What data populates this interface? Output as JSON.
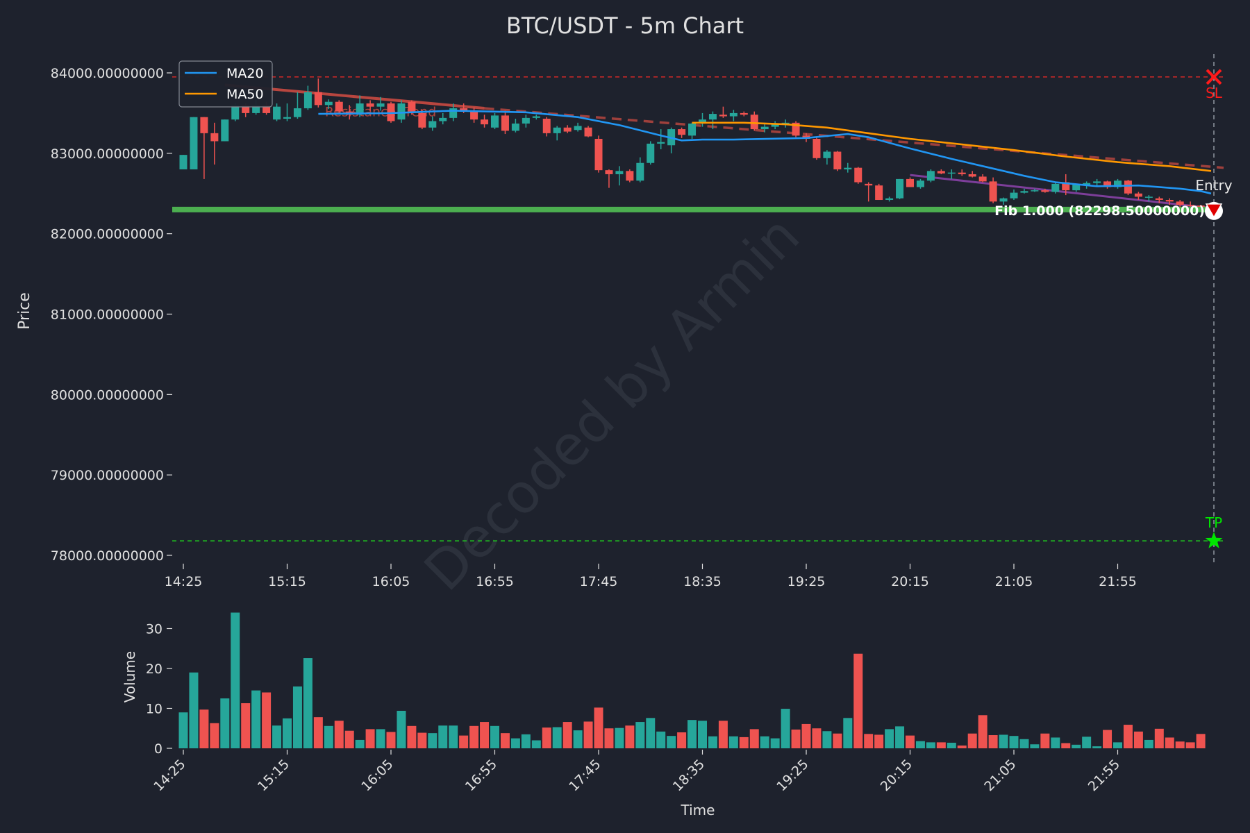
{
  "chart_data": [
    {
      "type": "candlestick",
      "title": "BTC/USDT - 5m Chart",
      "ylabel": "Price",
      "ylim": [
        77800,
        84300
      ],
      "yticks": [
        78000,
        79000,
        80000,
        81000,
        82000,
        83000,
        84000
      ],
      "ytick_labels": [
        "78000.00000000",
        "79000.00000000",
        "80000.00000000",
        "81000.00000000",
        "82000.00000000",
        "83000.00000000",
        "84000.00000000"
      ],
      "xticks": [
        "14:25",
        "15:15",
        "16:05",
        "16:55",
        "17:45",
        "18:35",
        "19:25",
        "20:15",
        "21:05",
        "21:55"
      ],
      "ohlc": [
        [
          82800,
          82980,
          82800,
          82980
        ],
        [
          82800,
          83450,
          82800,
          83450
        ],
        [
          83450,
          83450,
          82680,
          83250
        ],
        [
          83250,
          83380,
          82860,
          83150
        ],
        [
          83150,
          83420,
          83150,
          83420
        ],
        [
          83420,
          83630,
          83400,
          83600
        ],
        [
          83600,
          83620,
          83450,
          83500
        ],
        [
          83500,
          83780,
          83480,
          83600
        ],
        [
          83600,
          83640,
          83480,
          83500
        ],
        [
          83420,
          83620,
          83400,
          83580
        ],
        [
          83430,
          83620,
          83400,
          83450
        ],
        [
          83450,
          83760,
          83430,
          83560
        ],
        [
          83560,
          83840,
          83540,
          83760
        ],
        [
          83760,
          83930,
          83570,
          83600
        ],
        [
          83600,
          83670,
          83550,
          83640
        ],
        [
          83640,
          83660,
          83500,
          83520
        ],
        [
          83520,
          83600,
          83420,
          83480
        ],
        [
          83480,
          83720,
          83450,
          83620
        ],
        [
          83620,
          83660,
          83530,
          83580
        ],
        [
          83580,
          83700,
          83530,
          83620
        ],
        [
          83620,
          83640,
          83380,
          83400
        ],
        [
          83420,
          83660,
          83380,
          83620
        ],
        [
          83640,
          83660,
          83480,
          83520
        ],
        [
          83500,
          83540,
          83300,
          83320
        ],
        [
          83320,
          83460,
          83280,
          83400
        ],
        [
          83400,
          83500,
          83360,
          83440
        ],
        [
          83440,
          83620,
          83400,
          83560
        ],
        [
          83560,
          83620,
          83500,
          83520
        ],
        [
          83520,
          83570,
          83380,
          83420
        ],
        [
          83420,
          83480,
          83320,
          83360
        ],
        [
          83320,
          83500,
          83300,
          83470
        ],
        [
          83470,
          83530,
          83240,
          83280
        ],
        [
          83280,
          83430,
          83260,
          83370
        ],
        [
          83370,
          83480,
          83320,
          83440
        ],
        [
          83440,
          83480,
          83420,
          83460
        ],
        [
          83430,
          83450,
          83210,
          83250
        ],
        [
          83250,
          83340,
          83160,
          83320
        ],
        [
          83320,
          83350,
          83250,
          83270
        ],
        [
          83290,
          83380,
          83270,
          83340
        ],
        [
          83320,
          83340,
          83200,
          83210
        ],
        [
          83180,
          83220,
          82760,
          82790
        ],
        [
          82790,
          82800,
          82570,
          82740
        ],
        [
          82740,
          82840,
          82600,
          82780
        ],
        [
          82780,
          82800,
          82640,
          82660
        ],
        [
          82660,
          82950,
          82640,
          82880
        ],
        [
          82880,
          83150,
          82860,
          83120
        ],
        [
          83120,
          83300,
          83050,
          83140
        ],
        [
          83100,
          83320,
          83000,
          83300
        ],
        [
          83300,
          83320,
          83190,
          83230
        ],
        [
          83220,
          83380,
          83180,
          83370
        ],
        [
          83370,
          83500,
          83330,
          83420
        ],
        [
          83420,
          83520,
          83300,
          83490
        ],
        [
          83480,
          83580,
          83440,
          83460
        ],
        [
          83460,
          83540,
          83400,
          83500
        ],
        [
          83500,
          83520,
          83460,
          83480
        ],
        [
          83480,
          83520,
          83280,
          83300
        ],
        [
          83300,
          83380,
          83260,
          83330
        ],
        [
          83330,
          83400,
          83300,
          83360
        ],
        [
          83360,
          83420,
          83320,
          83380
        ],
        [
          83380,
          83400,
          83200,
          83220
        ],
        [
          83220,
          83250,
          83140,
          83180
        ],
        [
          83180,
          83200,
          82920,
          82940
        ],
        [
          82940,
          83040,
          82860,
          83020
        ],
        [
          83020,
          83030,
          82780,
          82800
        ],
        [
          82800,
          82880,
          82760,
          82820
        ],
        [
          82820,
          82830,
          82620,
          82640
        ],
        [
          82620,
          82640,
          82400,
          82600
        ],
        [
          82600,
          82620,
          82420,
          82420
        ],
        [
          82420,
          82460,
          82400,
          82440
        ],
        [
          82440,
          82680,
          82430,
          82680
        ],
        [
          82680,
          82700,
          82580,
          82580
        ],
        [
          82580,
          82680,
          82560,
          82660
        ],
        [
          82660,
          82800,
          82640,
          82780
        ],
        [
          82780,
          82800,
          82740,
          82750
        ],
        [
          82750,
          82800,
          82680,
          82760
        ],
        [
          82760,
          82800,
          82720,
          82740
        ],
        [
          82740,
          82780,
          82700,
          82710
        ],
        [
          82710,
          82740,
          82640,
          82650
        ],
        [
          82650,
          82700,
          82380,
          82400
        ],
        [
          82400,
          82450,
          82360,
          82440
        ],
        [
          82440,
          82550,
          82420,
          82510
        ],
        [
          82510,
          82560,
          82500,
          82530
        ],
        [
          82530,
          82560,
          82520,
          82540
        ],
        [
          82540,
          82560,
          82510,
          82520
        ],
        [
          82520,
          82640,
          82500,
          82620
        ],
        [
          82640,
          82740,
          82480,
          82540
        ],
        [
          82540,
          82620,
          82520,
          82610
        ],
        [
          82610,
          82650,
          82560,
          82630
        ],
        [
          82630,
          82680,
          82600,
          82650
        ],
        [
          82650,
          82660,
          82560,
          82580
        ],
        [
          82580,
          82680,
          82560,
          82660
        ],
        [
          82660,
          82670,
          82480,
          82500
        ],
        [
          82500,
          82520,
          82420,
          82460
        ],
        [
          82460,
          82480,
          82400,
          82460
        ],
        [
          82440,
          82460,
          82380,
          82420
        ],
        [
          82420,
          82440,
          82360,
          82400
        ],
        [
          82400,
          82420,
          82320,
          82360
        ],
        [
          82360,
          82400,
          82330,
          82350
        ],
        [
          82350,
          82360,
          82300,
          82320
        ],
        [
          82320,
          82340,
          82280,
          82290
        ]
      ],
      "ma20": [
        [
          13,
          83490
        ],
        [
          20,
          83500
        ],
        [
          26,
          83530
        ],
        [
          33,
          83510
        ],
        [
          38,
          83450
        ],
        [
          42,
          83350
        ],
        [
          46,
          83220
        ],
        [
          48,
          83160
        ],
        [
          50,
          83170
        ],
        [
          53,
          83170
        ],
        [
          60,
          83190
        ],
        [
          64,
          83240
        ],
        [
          66,
          83200
        ],
        [
          70,
          83060
        ],
        [
          74,
          82930
        ],
        [
          78,
          82810
        ],
        [
          81,
          82720
        ],
        [
          84,
          82640
        ],
        [
          88,
          82590
        ],
        [
          92,
          82600
        ],
        [
          96,
          82560
        ],
        [
          98,
          82530
        ],
        [
          99,
          82500
        ]
      ],
      "ma50": [
        [
          49,
          83380
        ],
        [
          54,
          83380
        ],
        [
          58,
          83360
        ],
        [
          62,
          83320
        ],
        [
          66,
          83250
        ],
        [
          70,
          83180
        ],
        [
          75,
          83110
        ],
        [
          80,
          83040
        ],
        [
          85,
          82960
        ],
        [
          90,
          82890
        ],
        [
          95,
          82840
        ],
        [
          99,
          82780
        ]
      ],
      "annotations": {
        "resistance_trend": "Resistance Trend",
        "fib_label": "Fib 1.000 (82298.50000000)",
        "entry": "Entry",
        "sl": "SL",
        "tp": "TP",
        "watermark": "Decoded by Armin"
      },
      "levels": {
        "stop_loss": 83950,
        "take_profit": 78180,
        "fib": 82300,
        "entry": 82300
      },
      "legend": {
        "items": [
          {
            "name": "MA20",
            "color": "#2196f3"
          },
          {
            "name": "MA50",
            "color": "#ff9800"
          }
        ],
        "placement": "top-left"
      },
      "colors": {
        "up": "#26a69a",
        "down": "#ef5350",
        "background": "#1e222d",
        "fib": "#4caf50",
        "resistance": "#c94a42",
        "support": "#8e44ad",
        "stop_loss": "#ff1a1a",
        "take_profit": "#00e600"
      }
    },
    {
      "type": "bar",
      "xlabel": "Time",
      "ylabel": "Volume",
      "ylim": [
        0,
        36
      ],
      "yticks": [
        0,
        10,
        20,
        30
      ],
      "xticks": [
        "14:25",
        "15:15",
        "16:05",
        "16:55",
        "17:45",
        "18:35",
        "19:25",
        "20:15",
        "21:05",
        "21:55"
      ],
      "values": [
        9,
        19,
        9.7,
        6.3,
        12.5,
        34,
        11.3,
        14.5,
        14,
        5.7,
        7.5,
        15.5,
        22.6,
        7.8,
        5.6,
        6.9,
        4.4,
        2.1,
        4.8,
        4.8,
        4.1,
        9.4,
        5.6,
        3.9,
        3.8,
        5.7,
        5.7,
        3.2,
        5.6,
        6.6,
        5.6,
        3.8,
        2.5,
        3.5,
        2.0,
        5.2,
        5.3,
        6.6,
        4.5,
        6.7,
        10.2,
        5.0,
        5.1,
        5.7,
        6.6,
        7.6,
        4.2,
        3.1,
        4.0,
        7.1,
        6.9,
        3.0,
        6.9,
        3.0,
        2.8,
        4.8,
        3.0,
        2.5,
        9.9,
        4.7,
        6.1,
        5.0,
        4.3,
        3.7,
        7.6,
        23.7,
        3.6,
        3.4,
        4.8,
        5.5,
        3.2,
        1.8,
        1.5,
        1.5,
        1.4,
        0.7,
        3.7,
        8.3,
        3.3,
        3.4,
        3.1,
        2.3,
        1.0,
        3.7,
        2.7,
        1.3,
        0.9,
        2.9,
        0.5,
        4.6,
        1.5,
        5.9,
        4.2,
        2.1,
        4.9,
        2.7,
        1.7,
        1.5,
        3.6
      ]
    }
  ]
}
